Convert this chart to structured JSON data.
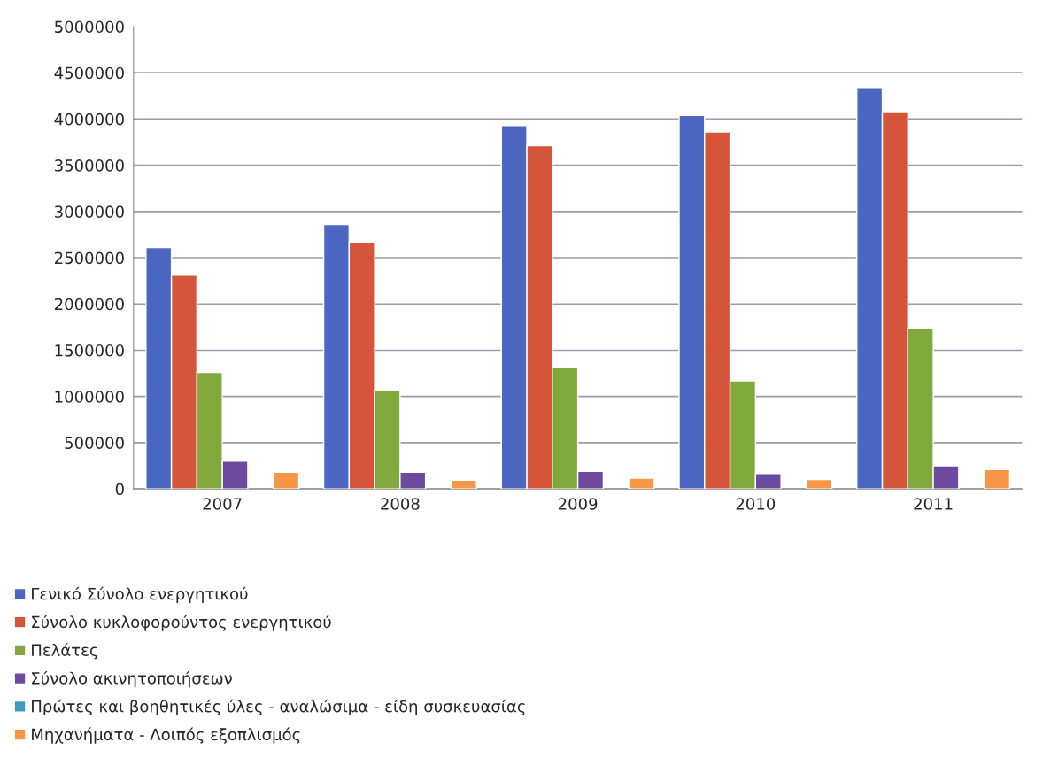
{
  "chart_data": {
    "type": "bar",
    "categories": [
      "2007",
      "2008",
      "2009",
      "2010",
      "2011"
    ],
    "series": [
      {
        "name": "Γενικό Σύνολο ενεργητικού",
        "color": "#4a66c0",
        "values": [
          2610000,
          2860000,
          3930000,
          4040000,
          4340000
        ]
      },
      {
        "name": "Σύνολο κυκλοφορούντος ενεργητικού",
        "color": "#d4553a",
        "values": [
          2310000,
          2670000,
          3710000,
          3860000,
          4070000
        ]
      },
      {
        "name": "Πελάτες",
        "color": "#80a83c",
        "values": [
          1260000,
          1065000,
          1310000,
          1170000,
          1740000
        ]
      },
      {
        "name": "Σύνολο ακινητοποιήσεων",
        "color": "#6e4a9e",
        "values": [
          300000,
          180000,
          190000,
          165000,
          250000
        ]
      },
      {
        "name": "Πρώτες και βοηθητικές ύλες - αναλώσιμα - είδη συσκευασίας",
        "color": "#3a9cc0",
        "values": [
          null,
          null,
          null,
          null,
          null
        ]
      },
      {
        "name": "Μηχανήματα - Λοιπός εξοπλισμός",
        "color": "#f79646",
        "values": [
          180000,
          95000,
          115000,
          100000,
          210000
        ]
      }
    ],
    "ylim": [
      0,
      5000000
    ],
    "yticks": [
      0,
      500000,
      1000000,
      1500000,
      2000000,
      2500000,
      3000000,
      3500000,
      4000000,
      4500000,
      5000000
    ],
    "grid": "y",
    "legend": "bottom"
  }
}
